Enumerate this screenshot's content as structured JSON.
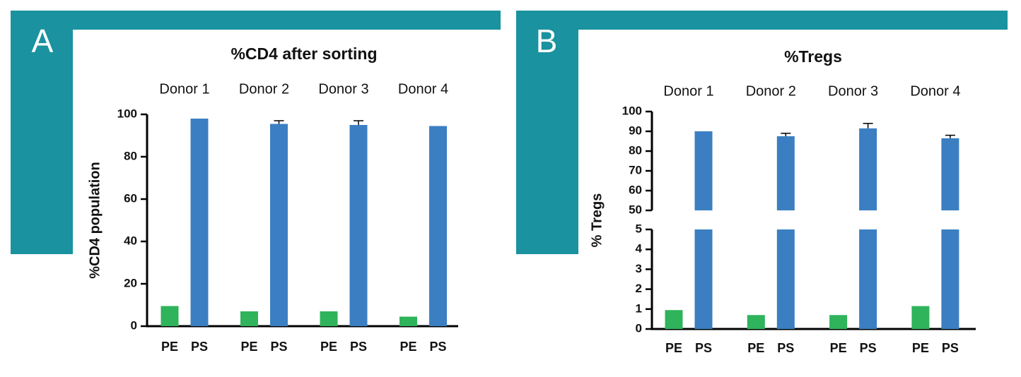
{
  "chart_data": [
    {
      "type": "bar",
      "panel": "A",
      "title": "%CD4 after sorting",
      "ylabel": "%CD4 population",
      "categories": [
        "Donor 1",
        "Donor 2",
        "Donor 3",
        "Donor 4"
      ],
      "series": [
        {
          "name": "PE",
          "color": "#2fb35b",
          "values": [
            9.5,
            7,
            7,
            4.5
          ]
        },
        {
          "name": "PS",
          "color": "#3b7fc2",
          "values": [
            98,
            95.5,
            95,
            94.5
          ],
          "errors": [
            0,
            1.5,
            2,
            0
          ]
        }
      ],
      "ylim": [
        0,
        100
      ],
      "yticks": [
        0,
        20,
        40,
        60,
        80,
        100
      ]
    },
    {
      "type": "bar",
      "panel": "B",
      "title": "%Tregs",
      "ylabel": "% Tregs",
      "categories": [
        "Donor 1",
        "Donor 2",
        "Donor 3",
        "Donor 4"
      ],
      "series": [
        {
          "name": "PE",
          "color": "#2fb35b",
          "values": [
            0.95,
            0.7,
            0.7,
            1.15
          ]
        },
        {
          "name": "PS",
          "color": "#3b7fc2",
          "values": [
            90,
            87.5,
            91.5,
            86.5
          ],
          "errors": [
            0,
            1.5,
            2.5,
            1.5
          ]
        }
      ],
      "ylim": [
        0,
        100
      ],
      "ybreak": [
        5,
        50
      ],
      "yticks": [
        0,
        1,
        2,
        3,
        4,
        5,
        50,
        60,
        70,
        80,
        90,
        100
      ]
    }
  ]
}
